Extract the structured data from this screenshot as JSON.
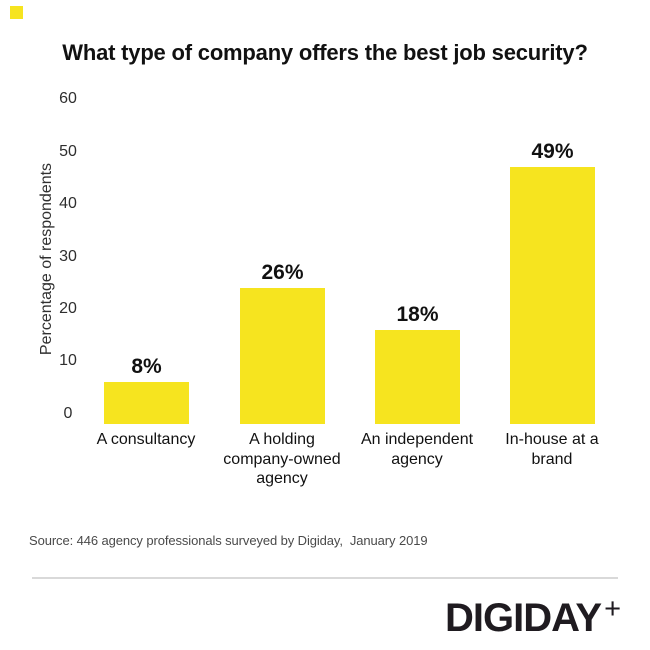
{
  "chart_data": {
    "type": "bar",
    "title": "What type of company offers the best job security?",
    "categories": [
      "A consultancy",
      "A holding company-owned agency",
      "An independent agency",
      "In-house at a brand"
    ],
    "values": [
      8,
      26,
      18,
      49
    ],
    "value_labels": [
      "8%",
      "26%",
      "18%",
      "49%"
    ],
    "xlabel": "",
    "ylabel": "Percentage of respondents",
    "ylim": [
      0,
      60
    ],
    "yticks": [
      0,
      10,
      20,
      30,
      40,
      50,
      60
    ],
    "bar_color": "#F6E41F",
    "grid": false,
    "legend": false
  },
  "axis": {
    "tick_labels": [
      "60",
      "50",
      "40",
      "30",
      "20",
      "10",
      "0"
    ]
  },
  "display": {
    "category_label_lines": [
      "A consultancy",
      "A holding\ncompany-owned\nagency",
      "An independent\nagency",
      "In-house at a\nbrand"
    ]
  },
  "source_note": "Source: 446 agency professionals surveyed by Digiday,  January 2019",
  "footer": {
    "logo_text": "DIGIDAY",
    "plus_glyph": "+"
  },
  "brand": {
    "accent_color": "#F6E41F",
    "logo_color": "#1f1b20"
  }
}
